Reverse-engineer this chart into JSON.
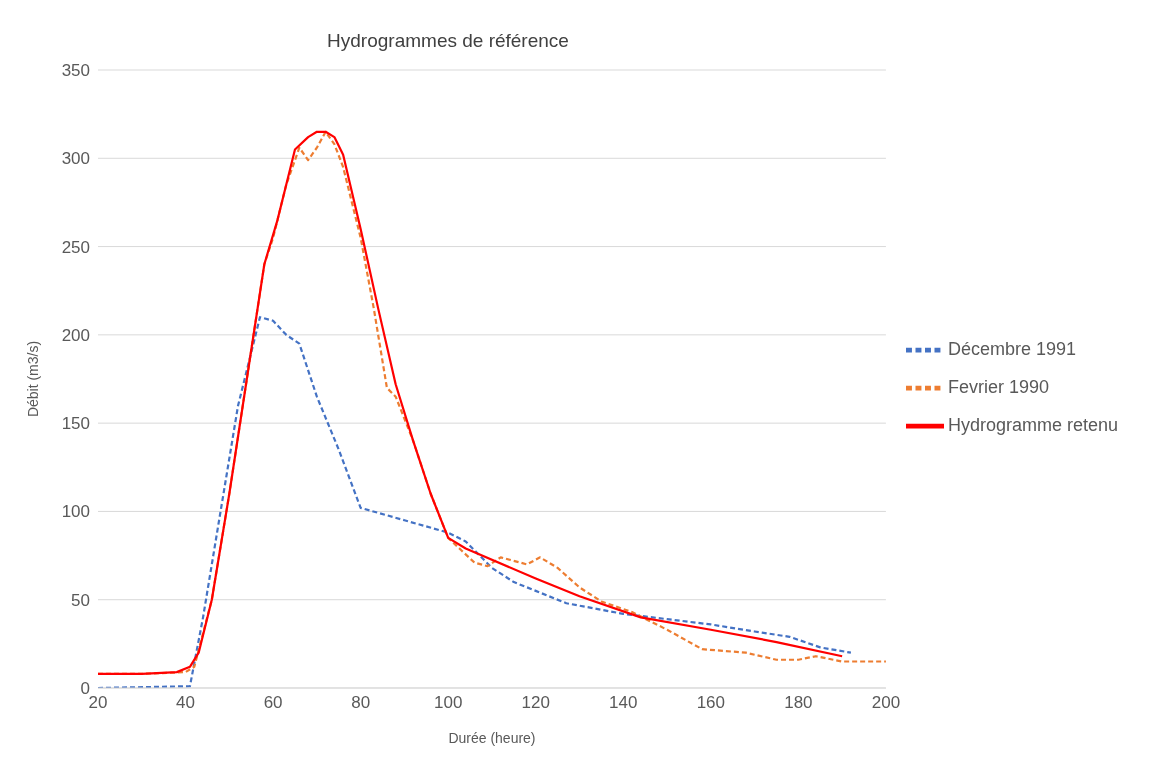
{
  "chart_data": {
    "type": "line",
    "title": "Hydrogrammes de référence",
    "xlabel": "Durée (heure)",
    "ylabel": "Débit (m3/s)",
    "xlim": [
      20,
      200
    ],
    "xticks": [
      20,
      40,
      60,
      80,
      100,
      120,
      140,
      160,
      180,
      200
    ],
    "ylim": [
      0,
      350
    ],
    "yticks": [
      0,
      50,
      100,
      150,
      200,
      250,
      300,
      350
    ],
    "grid": "y",
    "legend": "right",
    "marker": "none",
    "series": [
      {
        "name": "Décembre 1991",
        "color": "#4472c4",
        "line_style": "dashed",
        "x": [
          20,
          41,
          44,
          48,
          52,
          57,
          60,
          63,
          66,
          70,
          75,
          80,
          90,
          100,
          104,
          110,
          115,
          120,
          127,
          140,
          150,
          160,
          170,
          178,
          185,
          192
        ],
        "values": [
          0,
          1,
          40,
          100,
          160,
          210,
          208,
          200,
          195,
          165,
          135,
          102,
          95,
          88,
          83,
          68,
          60,
          55,
          48,
          42,
          39,
          36,
          32,
          29,
          23,
          20
        ]
      },
      {
        "name": "Fevrier 1990",
        "color": "#ed7d31",
        "line_style": "dashed",
        "x": [
          20,
          30,
          40,
          42,
          46,
          50,
          54,
          58,
          60,
          63,
          66,
          68,
          70,
          72,
          74,
          76,
          80,
          83,
          86,
          88,
          92,
          96,
          100,
          103,
          106,
          109,
          112,
          118,
          121,
          125,
          130,
          135,
          142,
          150,
          158,
          168,
          175,
          180,
          184,
          190,
          200
        ],
        "values": [
          8,
          8,
          9,
          12,
          50,
          110,
          175,
          240,
          255,
          285,
          306,
          299,
          306,
          315,
          308,
          295,
          255,
          215,
          170,
          165,
          140,
          110,
          85,
          78,
          71,
          69,
          74,
          70,
          74,
          68,
          57,
          49,
          43,
          33,
          22,
          20,
          16,
          16,
          18,
          15,
          15
        ]
      },
      {
        "name": "Hydrogramme retenu",
        "color": "#ff0000",
        "line_style": "solid",
        "x": [
          20,
          30,
          38,
          41,
          43,
          46,
          50,
          54,
          58,
          61,
          65,
          68,
          70,
          72,
          74,
          76,
          80,
          84,
          88,
          92,
          96,
          100,
          104,
          120,
          130,
          144,
          160,
          175,
          190
        ],
        "values": [
          8,
          8,
          9,
          12,
          20,
          50,
          110,
          175,
          240,
          265,
          305,
          312,
          315,
          315,
          312,
          302,
          260,
          215,
          172,
          140,
          110,
          85,
          79,
          62,
          52,
          40,
          33,
          26,
          18
        ]
      }
    ]
  }
}
